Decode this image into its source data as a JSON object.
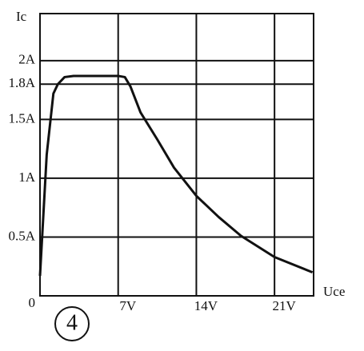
{
  "chart_data": {
    "type": "line",
    "y_label": "Ic",
    "x_label": "Uce",
    "annotation": "4",
    "x": [
      0,
      0.6,
      1.2,
      1.6,
      2.2,
      3,
      5,
      7,
      7.6,
      8.1,
      9,
      10.5,
      12,
      14,
      16,
      18,
      21,
      24.4
    ],
    "series": [
      {
        "name": "Ic",
        "color": "#111111",
        "values": [
          0.17,
          1.2,
          1.72,
          1.8,
          1.86,
          1.87,
          1.87,
          1.87,
          1.86,
          1.78,
          1.56,
          1.33,
          1.09,
          0.85,
          0.67,
          0.51,
          0.33,
          0.2
        ]
      }
    ],
    "xlim": [
      0,
      24.5
    ],
    "ylim": [
      0,
      2.4
    ],
    "xticks": [
      {
        "value": 7,
        "label": "7V"
      },
      {
        "value": 14,
        "label": "14V"
      },
      {
        "value": 21,
        "label": "21V"
      }
    ],
    "yticks": [
      0,
      {
        "value": 0.5,
        "label": "0.5A"
      },
      {
        "value": 1,
        "label": "1A"
      },
      {
        "value": 1.5,
        "label": "1.5A"
      },
      {
        "value": 1.8,
        "label": "1.8A"
      },
      {
        "value": 2,
        "label": "2A"
      }
    ],
    "grid": true
  }
}
